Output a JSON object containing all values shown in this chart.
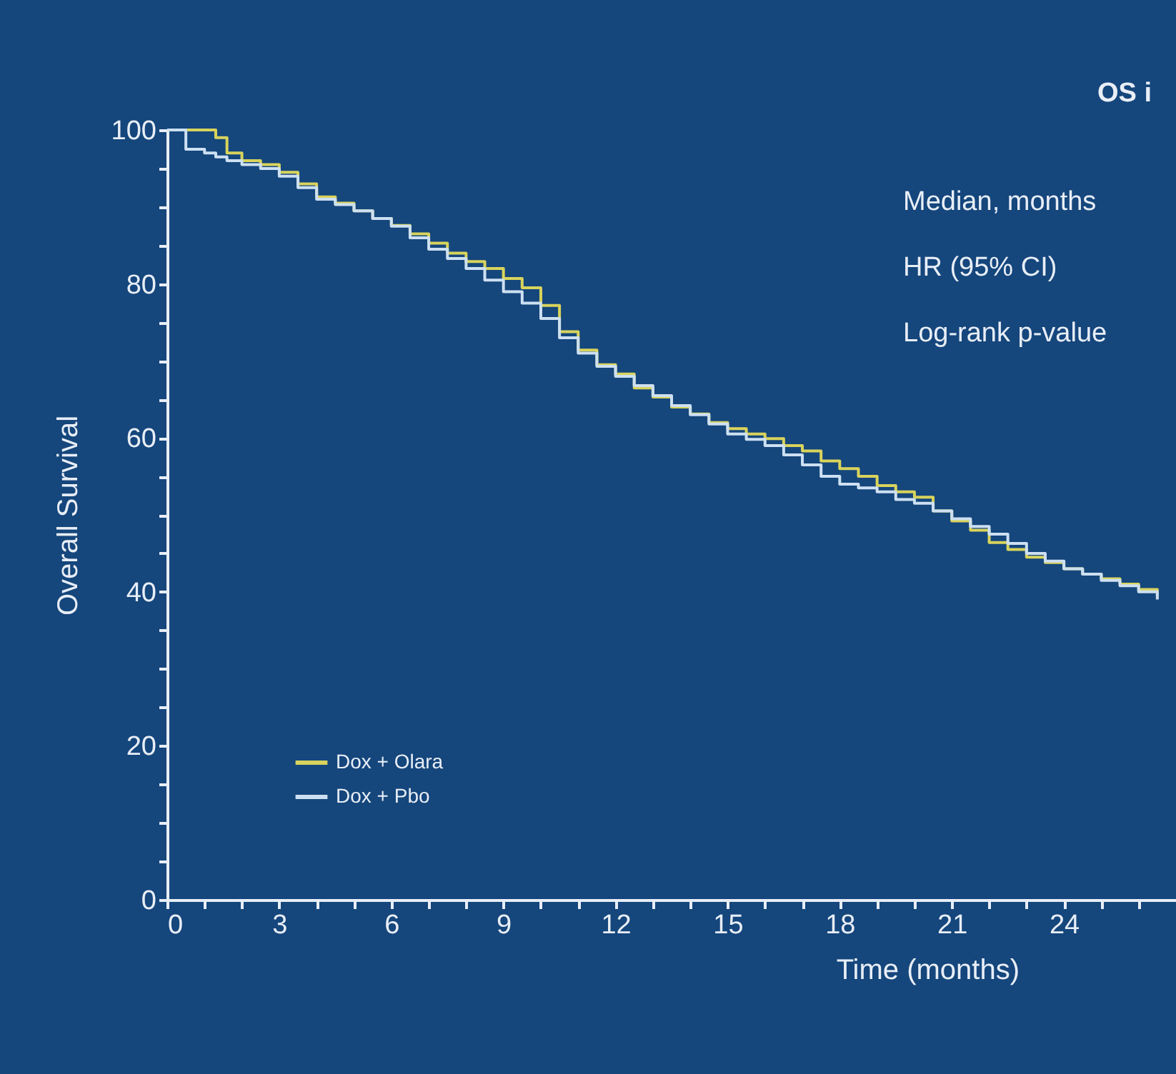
{
  "chart_data": {
    "type": "step",
    "xlabel": "Time (months)",
    "ylabel": "Overall Survival",
    "annotations": [
      "OS i",
      "Median, months",
      "HR (95% CI)",
      "Log-rank p-value"
    ],
    "x": [
      0,
      0.5,
      1,
      1.3,
      1.6,
      2,
      2.5,
      3,
      3.5,
      4,
      4.5,
      5,
      5.5,
      6,
      6.5,
      7,
      7.5,
      8,
      8.5,
      9,
      9.5,
      10,
      10.5,
      11,
      11.5,
      12,
      12.5,
      13,
      13.5,
      14,
      14.5,
      15,
      15.5,
      16,
      16.5,
      17,
      17.5,
      18,
      18.5,
      19,
      19.5,
      20,
      20.5,
      21,
      21.5,
      22,
      22.5,
      23,
      23.5,
      24,
      24.5,
      25,
      25.5,
      26,
      26.5
    ],
    "series": [
      {
        "name": "Dox + Olara",
        "color": "#d8d35c",
        "values": [
          100,
          100,
          100,
          99,
          97,
          96,
          95.5,
          94.5,
          93,
          91.3,
          90.5,
          89.5,
          88.5,
          87.6,
          86.5,
          85.3,
          84,
          82.9,
          82,
          80.7,
          79.5,
          77.2,
          73.8,
          71.4,
          69.5,
          68.3,
          66.5,
          65.3,
          64,
          63.1,
          62,
          61.2,
          60.5,
          59.9,
          59,
          58.3,
          57,
          56,
          55,
          53.8,
          53,
          52.3,
          50.5,
          49.2,
          48,
          46.4,
          45.5,
          44.5,
          43.8,
          43,
          42.3,
          41.7,
          41,
          40.3,
          39.5
        ]
      },
      {
        "name": "Dox + Pbo",
        "color": "#cde0f2",
        "values": [
          100,
          97.5,
          97,
          96.5,
          96,
          95.5,
          95,
          94,
          92.5,
          91,
          90.3,
          89.5,
          88.5,
          87.5,
          86,
          84.5,
          83.3,
          82,
          80.5,
          79,
          77.5,
          75.5,
          73,
          71,
          69.3,
          68,
          66.8,
          65.5,
          64.2,
          63,
          61.8,
          60.5,
          59.8,
          59,
          57.8,
          56.5,
          55,
          54,
          53.5,
          53,
          52,
          51.5,
          50.5,
          49.5,
          48.5,
          47.5,
          46.3,
          45,
          44,
          43,
          42.3,
          41.5,
          40.8,
          40,
          39
        ]
      }
    ],
    "xlim": [
      0,
      27
    ],
    "xticks": [
      0,
      {
        "value": 1,
        "label": null
      },
      {
        "value": 2,
        "label": null
      },
      3,
      {
        "value": 4,
        "label": null
      },
      {
        "value": 5,
        "label": null
      },
      6,
      {
        "value": 7,
        "label": null
      },
      {
        "value": 8,
        "label": null
      },
      9,
      {
        "value": 10,
        "label": null
      },
      {
        "value": 11,
        "label": null
      },
      12,
      {
        "value": 13,
        "label": null
      },
      {
        "value": 14,
        "label": null
      },
      15,
      {
        "value": 16,
        "label": null
      },
      {
        "value": 17,
        "label": null
      },
      18,
      {
        "value": 19,
        "label": null
      },
      {
        "value": 20,
        "label": null
      },
      21,
      {
        "value": 22,
        "label": null
      },
      {
        "value": 23,
        "label": null
      },
      24,
      {
        "value": 25,
        "label": null
      },
      {
        "value": 26,
        "label": null
      }
    ],
    "ylim": [
      0,
      100
    ],
    "yticks": [
      0,
      {
        "value": 5,
        "label": null
      },
      {
        "value": 10,
        "label": null
      },
      {
        "value": 15,
        "label": null
      },
      20,
      {
        "value": 25,
        "label": null
      },
      {
        "value": 30,
        "label": null
      },
      {
        "value": 35,
        "label": null
      },
      40,
      {
        "value": 45,
        "label": null
      },
      {
        "value": 50,
        "label": null
      },
      {
        "value": 55,
        "label": null
      },
      60,
      {
        "value": 65,
        "label": null
      },
      {
        "value": 70,
        "label": null
      },
      {
        "value": 75,
        "label": null
      },
      80,
      {
        "value": 85,
        "label": null
      },
      {
        "value": 90,
        "label": null
      },
      {
        "value": 95,
        "label": null
      },
      100
    ],
    "grid": false,
    "legend": "bottom left",
    "line_style": "solid",
    "marker": "none"
  }
}
